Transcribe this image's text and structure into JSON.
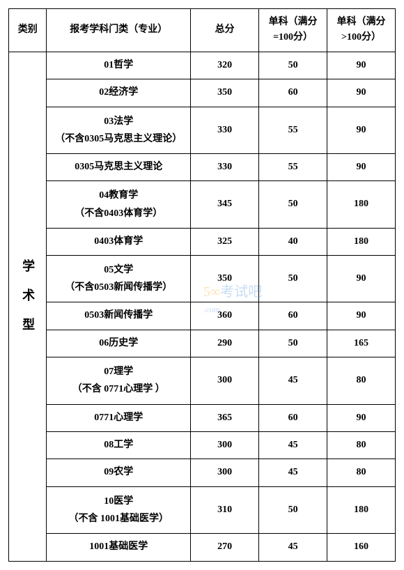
{
  "header": {
    "category": "类别",
    "subject": "报考学科门类（专业）",
    "total": "总分",
    "single100": "单科（满分=100分）",
    "singleOver100": "单科（满分>100分）"
  },
  "categoryLabel": "学术型",
  "rows": [
    {
      "subject": "01哲学",
      "total": "320",
      "s1": "50",
      "s2": "90"
    },
    {
      "subject": "02经济学",
      "total": "350",
      "s1": "60",
      "s2": "90"
    },
    {
      "subject": "03法学",
      "note": "（不含0305马克思主义理论）",
      "total": "330",
      "s1": "55",
      "s2": "90"
    },
    {
      "subject": "0305马克思主义理论",
      "total": "330",
      "s1": "55",
      "s2": "90"
    },
    {
      "subject": "04教育学",
      "note": "（不含0403体育学）",
      "total": "345",
      "s1": "50",
      "s2": "180"
    },
    {
      "subject": "0403体育学",
      "total": "325",
      "s1": "40",
      "s2": "180"
    },
    {
      "subject": "05文学",
      "note": "（不含0503新闻传播学）",
      "total": "350",
      "s1": "50",
      "s2": "90"
    },
    {
      "subject": "0503新闻传播学",
      "total": "360",
      "s1": "60",
      "s2": "90"
    },
    {
      "subject": "06历史学",
      "total": "290",
      "s1": "50",
      "s2": "165"
    },
    {
      "subject": "07理学",
      "note": "（不含 0771心理学 ）",
      "total": "300",
      "s1": "45",
      "s2": "80"
    },
    {
      "subject": "0771心理学",
      "total": "365",
      "s1": "60",
      "s2": "90"
    },
    {
      "subject": "08工学",
      "total": "300",
      "s1": "45",
      "s2": "80"
    },
    {
      "subject": "09农学",
      "total": "300",
      "s1": "45",
      "s2": "80"
    },
    {
      "subject": "10医学",
      "note": "（不含 1001基础医学）",
      "total": "310",
      "s1": "50",
      "s2": "180"
    },
    {
      "subject": "1001基础医学",
      "total": "270",
      "s1": "45",
      "s2": "160"
    }
  ],
  "watermark": {
    "part1": "5∞",
    "part2": "考试吧",
    "part3": ".com"
  }
}
